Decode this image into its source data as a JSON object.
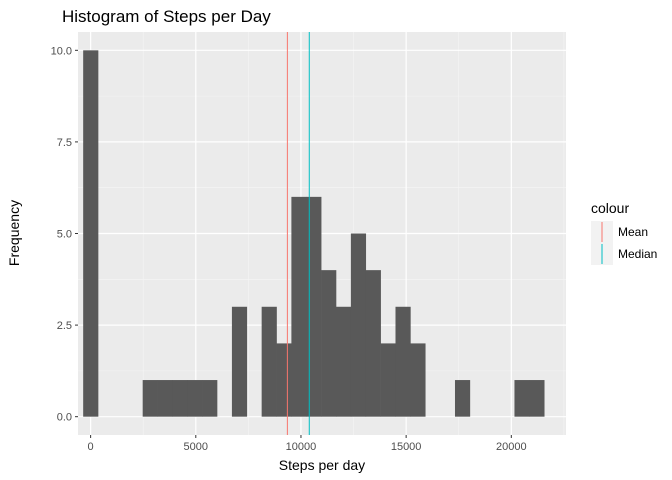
{
  "chart_data": {
    "type": "bar",
    "title": "Histogram of Steps per Day",
    "xlabel": "Steps per day",
    "ylabel": "Frequency",
    "xlim": [
      -600,
      22600
    ],
    "ylim": [
      -0.5,
      10.5
    ],
    "xticks": [
      0,
      5000,
      10000,
      15000,
      20000
    ],
    "yticks": [
      0.0,
      2.5,
      5.0,
      7.5,
      10.0
    ],
    "ytick_labels": [
      "0.0",
      "2.5",
      "5.0",
      "7.5",
      "10.0"
    ],
    "grid": true,
    "bin_width": 707,
    "bins": [
      {
        "start": -354,
        "count": 10
      },
      {
        "start": 2475,
        "count": 1
      },
      {
        "start": 3182,
        "count": 1
      },
      {
        "start": 3889,
        "count": 1
      },
      {
        "start": 4596,
        "count": 1
      },
      {
        "start": 5303,
        "count": 1
      },
      {
        "start": 6717,
        "count": 3
      },
      {
        "start": 8131,
        "count": 3
      },
      {
        "start": 8838,
        "count": 2
      },
      {
        "start": 9545,
        "count": 6
      },
      {
        "start": 10252,
        "count": 6
      },
      {
        "start": 10959,
        "count": 4
      },
      {
        "start": 11666,
        "count": 3
      },
      {
        "start": 12373,
        "count": 5
      },
      {
        "start": 13080,
        "count": 4
      },
      {
        "start": 13787,
        "count": 2
      },
      {
        "start": 14494,
        "count": 3
      },
      {
        "start": 15201,
        "count": 2
      },
      {
        "start": 17322,
        "count": 1
      },
      {
        "start": 20150,
        "count": 1
      },
      {
        "start": 20857,
        "count": 1
      }
    ],
    "bar_color": "#595959",
    "vlines": [
      {
        "name": "Mean",
        "x": 9354,
        "color": "#F8766D"
      },
      {
        "name": "Median",
        "x": 10395,
        "color": "#00BFC4"
      }
    ],
    "legend": {
      "title": "colour",
      "position": "right",
      "entries": [
        "Mean",
        "Median"
      ]
    }
  }
}
